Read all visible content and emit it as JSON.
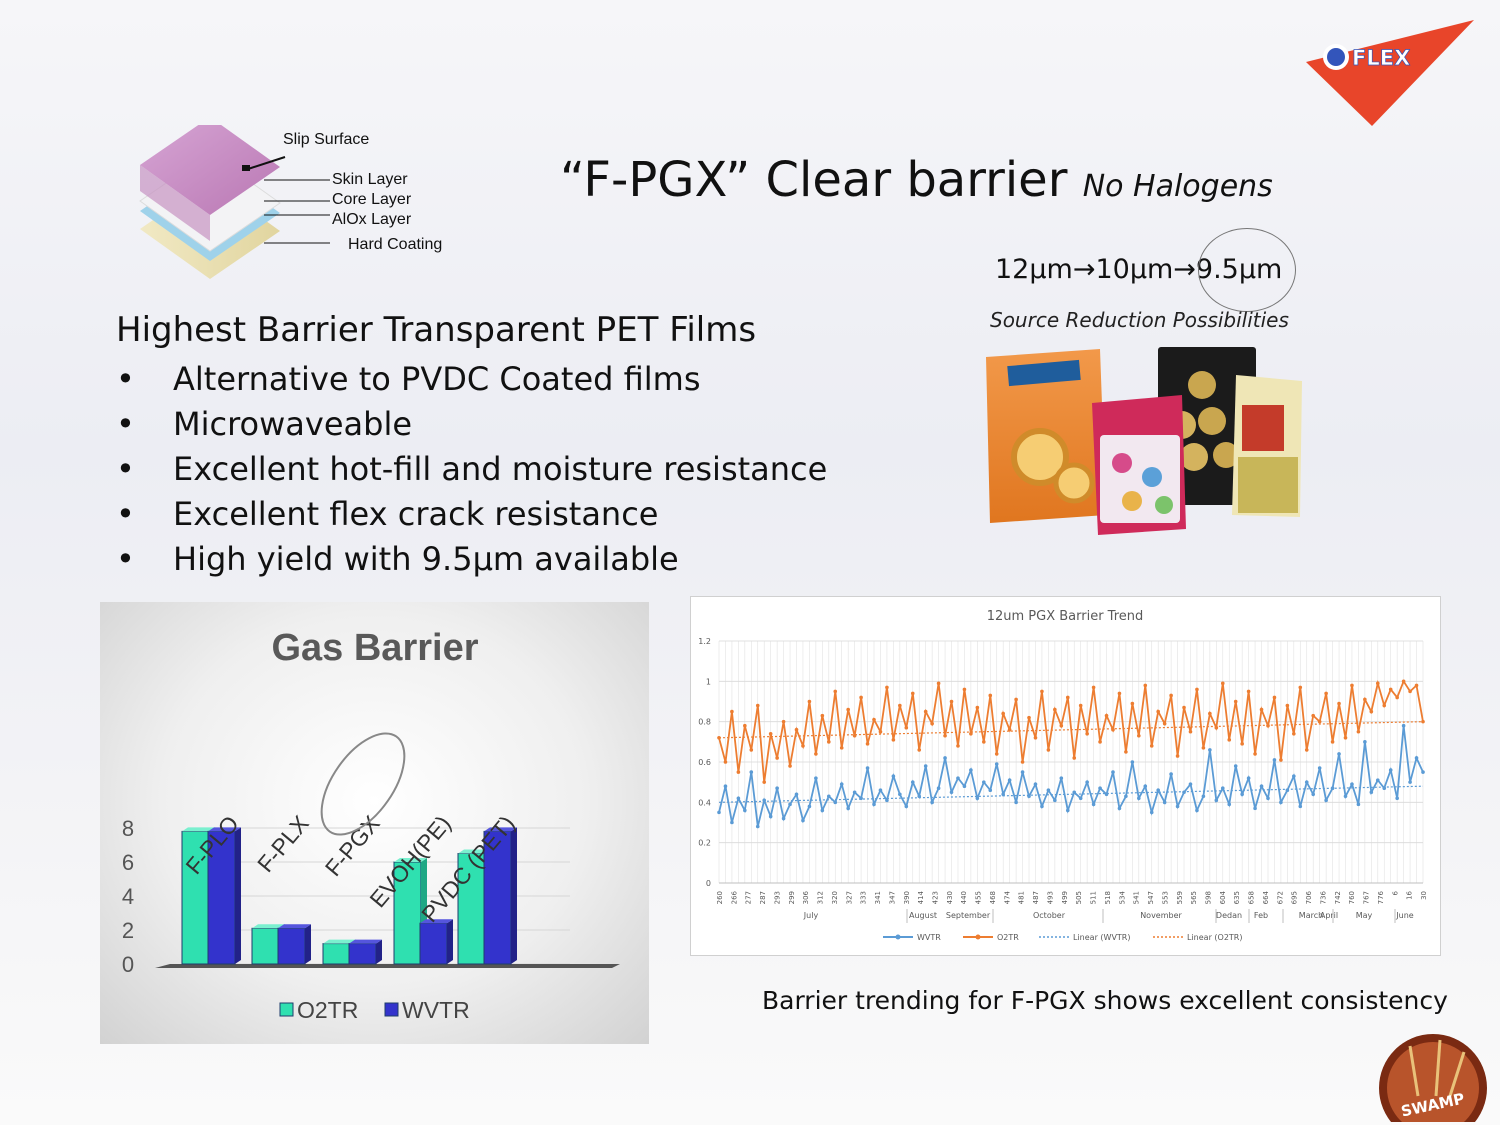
{
  "logo": {
    "text": "FLEX",
    "color": "#e8452a"
  },
  "title": {
    "main": "“F-PGX” Clear barrier",
    "sub": "No Halogens"
  },
  "gauge": {
    "text": "12μm→10μm→9.5μm"
  },
  "source_reduction": "Source Reduction Possibilities",
  "layers": {
    "slip": "Slip Surface",
    "skin": "Skin Layer",
    "core": "Core Layer",
    "alox": "AlOx Layer",
    "hard": "Hard Coating"
  },
  "heading": "Highest Barrier Transparent PET Films",
  "bullets": [
    "Alternative to PVDC Coated films",
    "Microwaveable",
    "Excellent hot-fill and moisture resistance",
    "Excellent flex crack resistance",
    "High yield with 9.5μm available"
  ],
  "caption": "Barrier trending for F-PGX shows excellent consistency",
  "swamp": {
    "text": "SWAMP"
  },
  "chart_data": [
    {
      "type": "bar",
      "title": "Gas Barrier",
      "categories": [
        "F-PLO",
        "F-PLX",
        "F-PGX",
        "EVOH(PE)",
        "PVDC (PET)"
      ],
      "series": [
        {
          "name": "O2TR",
          "values": [
            7.8,
            2.1,
            1.2,
            6.0,
            6.5
          ],
          "color": "#2fe0b0"
        },
        {
          "name": "WVTR",
          "values": [
            7.8,
            2.1,
            1.2,
            2.4,
            7.8
          ],
          "color": "#3333cc"
        }
      ],
      "yticks": [
        0,
        2,
        4,
        6,
        8
      ],
      "ylim": [
        0,
        8.5
      ],
      "legend": "bottom",
      "grid": true,
      "highlighted_category": "F-PGX"
    },
    {
      "type": "line",
      "title": "12um PGX Barrier Trend",
      "ylim": [
        0,
        1.2
      ],
      "yticks": [
        "0",
        "0.2",
        "0.4",
        "0.6",
        "0.8",
        "1",
        "1.2"
      ],
      "xtick_labels": [
        "260",
        "266",
        "277",
        "287",
        "293",
        "299",
        "306",
        "312",
        "320",
        "327",
        "333",
        "341",
        "347",
        "390",
        "414",
        "423",
        "430",
        "440",
        "455",
        "468",
        "474",
        "481",
        "487",
        "493",
        "499",
        "505",
        "511",
        "518",
        "534",
        "541",
        "547",
        "553",
        "559",
        "565",
        "598",
        "604",
        "635",
        "658",
        "664",
        "672",
        "695",
        "706",
        "736",
        "742",
        "760",
        "767",
        "776",
        "6",
        "16",
        "30"
      ],
      "months": [
        "July",
        "August",
        "September",
        "October",
        "November",
        "Dedan",
        "Feb",
        "March",
        "April",
        "May",
        "June"
      ],
      "series": [
        {
          "name": "WVTR",
          "color": "#5b9bd5",
          "mean_start": 0.4,
          "mean_end": 0.48,
          "values": [
            0.35,
            0.48,
            0.3,
            0.42,
            0.36,
            0.55,
            0.28,
            0.41,
            0.33,
            0.47,
            0.32,
            0.39,
            0.44,
            0.31,
            0.38,
            0.52,
            0.36,
            0.43,
            0.4,
            0.49,
            0.37,
            0.45,
            0.42,
            0.57,
            0.39,
            0.46,
            0.41,
            0.53,
            0.44,
            0.38,
            0.5,
            0.43,
            0.58,
            0.4,
            0.47,
            0.62,
            0.45,
            0.52,
            0.48,
            0.56,
            0.42,
            0.5,
            0.46,
            0.59,
            0.44,
            0.51,
            0.4,
            0.55,
            0.43,
            0.49,
            0.38,
            0.46,
            0.41,
            0.52,
            0.36,
            0.45,
            0.42,
            0.5,
            0.39,
            0.47,
            0.44,
            0.55,
            0.37,
            0.43,
            0.6,
            0.42,
            0.48,
            0.35,
            0.46,
            0.4,
            0.54,
            0.38,
            0.45,
            0.49,
            0.36,
            0.43,
            0.66,
            0.41,
            0.47,
            0.39,
            0.58,
            0.44,
            0.52,
            0.37,
            0.48,
            0.42,
            0.61,
            0.4,
            0.46,
            0.53,
            0.38,
            0.5,
            0.44,
            0.57,
            0.41,
            0.47,
            0.64,
            0.43,
            0.49,
            0.39,
            0.7,
            0.45,
            0.51,
            0.47,
            0.56,
            0.42,
            0.78,
            0.5,
            0.62,
            0.55
          ]
        },
        {
          "name": "O2TR",
          "color": "#ed7d31",
          "mean_start": 0.72,
          "mean_end": 0.8,
          "values": [
            0.72,
            0.6,
            0.85,
            0.55,
            0.78,
            0.66,
            0.88,
            0.5,
            0.74,
            0.62,
            0.8,
            0.58,
            0.76,
            0.68,
            0.9,
            0.64,
            0.83,
            0.7,
            0.95,
            0.67,
            0.86,
            0.73,
            0.92,
            0.69,
            0.81,
            0.75,
            0.97,
            0.71,
            0.88,
            0.77,
            0.94,
            0.66,
            0.85,
            0.79,
            0.99,
            0.73,
            0.9,
            0.68,
            0.96,
            0.74,
            0.87,
            0.7,
            0.93,
            0.64,
            0.84,
            0.76,
            0.91,
            0.6,
            0.82,
            0.72,
            0.95,
            0.66,
            0.86,
            0.78,
            0.92,
            0.62,
            0.88,
            0.74,
            0.97,
            0.7,
            0.83,
            0.76,
            0.94,
            0.65,
            0.89,
            0.73,
            0.98,
            0.68,
            0.85,
            0.79,
            0.93,
            0.63,
            0.87,
            0.75,
            0.96,
            0.67,
            0.84,
            0.77,
            0.99,
            0.71,
            0.9,
            0.69,
            0.95,
            0.64,
            0.86,
            0.78,
            0.92,
            0.61,
            0.88,
            0.74,
            0.97,
            0.66,
            0.83,
            0.8,
            0.94,
            0.7,
            0.89,
            0.72,
            0.98,
            0.75,
            0.91,
            0.85,
            0.99,
            0.88,
            0.96,
            0.92,
            1.0,
            0.95,
            0.98,
            0.8
          ]
        }
      ],
      "legend": {
        "position": "bottom",
        "entries": [
          "WVTR",
          "O2TR",
          "Linear  (WVTR)",
          "Linear  (O2TR)"
        ]
      },
      "trendlines": "linear dotted"
    }
  ]
}
